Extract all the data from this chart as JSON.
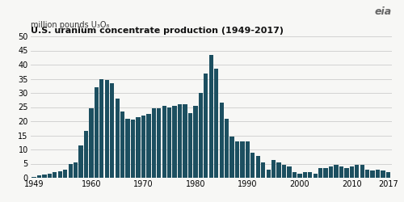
{
  "title": "U.S. uranium concentrate production (1949-2017)",
  "subtitle": "million pounds U₃O₈",
  "bar_color": "#1c4f60",
  "background_color": "#f7f7f5",
  "plot_bg_color": "#ffffff",
  "ylim": [
    0,
    50
  ],
  "yticks": [
    0,
    5,
    10,
    15,
    20,
    25,
    30,
    35,
    40,
    45,
    50
  ],
  "xtick_years": [
    1949,
    1960,
    1970,
    1980,
    1990,
    2000,
    2010,
    2017
  ],
  "years": [
    1949,
    1950,
    1951,
    1952,
    1953,
    1954,
    1955,
    1956,
    1957,
    1958,
    1959,
    1960,
    1961,
    1962,
    1963,
    1964,
    1965,
    1966,
    1967,
    1968,
    1969,
    1970,
    1971,
    1972,
    1973,
    1974,
    1975,
    1976,
    1977,
    1978,
    1979,
    1980,
    1981,
    1982,
    1983,
    1984,
    1985,
    1986,
    1987,
    1988,
    1989,
    1990,
    1991,
    1992,
    1993,
    1994,
    1995,
    1996,
    1997,
    1998,
    1999,
    2000,
    2001,
    2002,
    2003,
    2004,
    2005,
    2006,
    2007,
    2008,
    2009,
    2010,
    2011,
    2012,
    2013,
    2014,
    2015,
    2016,
    2017
  ],
  "values": [
    0.4,
    0.9,
    1.2,
    1.5,
    2.0,
    2.3,
    3.0,
    5.0,
    5.5,
    11.5,
    16.5,
    24.5,
    32.0,
    35.0,
    34.5,
    33.5,
    28.0,
    23.5,
    21.0,
    20.5,
    21.5,
    22.0,
    22.5,
    24.5,
    24.5,
    25.5,
    25.0,
    25.5,
    26.0,
    26.0,
    23.0,
    25.5,
    30.0,
    37.0,
    43.5,
    38.5,
    26.5,
    21.0,
    14.5,
    13.0,
    13.0,
    13.0,
    9.0,
    7.8,
    5.5,
    3.0,
    6.2,
    5.5,
    4.5,
    4.0,
    2.0,
    1.5,
    2.0,
    2.0,
    1.5,
    3.5,
    3.5,
    4.0,
    4.5,
    4.0,
    3.5,
    4.0,
    4.5,
    4.5,
    3.0,
    2.5,
    3.0,
    2.5,
    2.0
  ]
}
